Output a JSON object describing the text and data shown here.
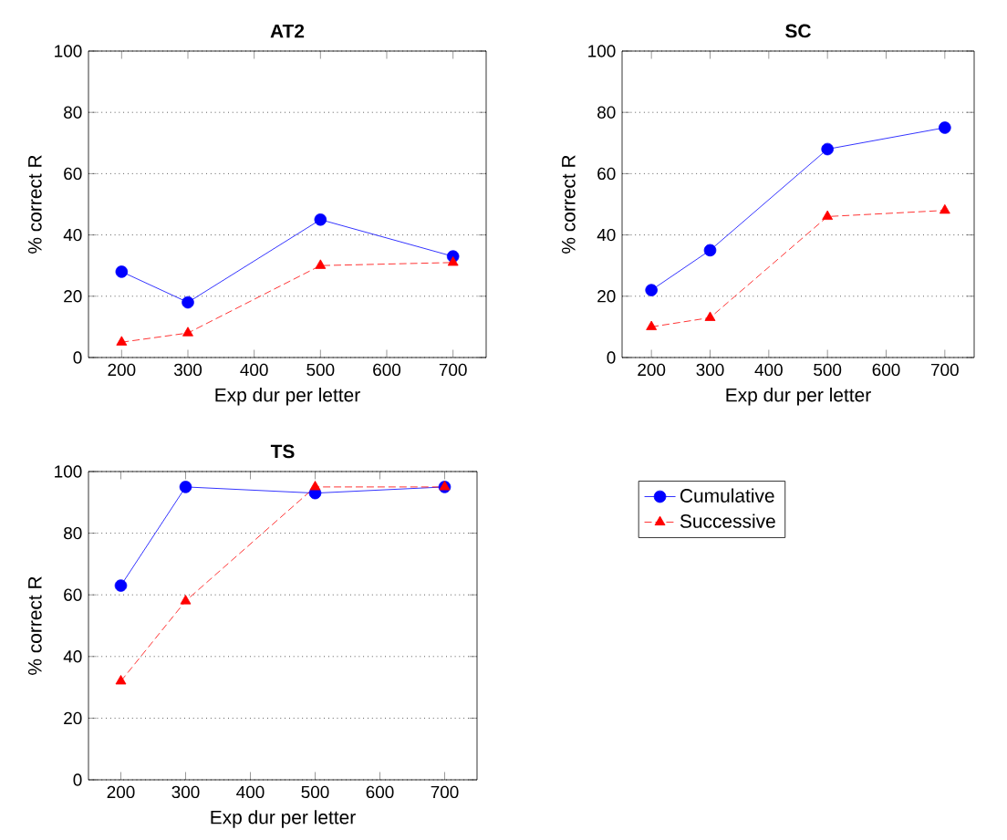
{
  "chart_data": [
    {
      "type": "line",
      "title": "AT2",
      "xlabel": "Exp dur per letter",
      "ylabel": "% correct R",
      "x": [
        200,
        300,
        500,
        700
      ],
      "xlim": [
        150,
        750
      ],
      "ylim": [
        0,
        100
      ],
      "xticks": [
        200,
        300,
        400,
        500,
        600,
        700
      ],
      "yticks": [
        0,
        20,
        40,
        60,
        80,
        100
      ],
      "grid": "y",
      "legend": false,
      "series": [
        {
          "color": "#0000ff",
          "marker": "circle",
          "line_style": "solid",
          "values": [
            28,
            18,
            45,
            33
          ]
        },
        {
          "color": "#ff0000",
          "marker": "triangle",
          "line_style": "dashed",
          "values": [
            5,
            8,
            30,
            31
          ]
        }
      ]
    },
    {
      "type": "line",
      "title": "SC",
      "xlabel": "Exp dur per letter",
      "ylabel": "% correct R",
      "x": [
        200,
        300,
        500,
        700
      ],
      "xlim": [
        150,
        750
      ],
      "ylim": [
        0,
        100
      ],
      "xticks": [
        200,
        300,
        400,
        500,
        600,
        700
      ],
      "yticks": [
        0,
        20,
        40,
        60,
        80,
        100
      ],
      "grid": "y",
      "legend": false,
      "series": [
        {
          "color": "#0000ff",
          "marker": "circle",
          "line_style": "solid",
          "values": [
            22,
            35,
            68,
            75
          ]
        },
        {
          "color": "#ff0000",
          "marker": "triangle",
          "line_style": "dashed",
          "values": [
            10,
            13,
            46,
            48
          ]
        }
      ]
    },
    {
      "type": "line",
      "title": "TS",
      "xlabel": "Exp dur per letter",
      "ylabel": "% correct R",
      "x": [
        200,
        300,
        500,
        700
      ],
      "xlim": [
        150,
        750
      ],
      "ylim": [
        0,
        100
      ],
      "xticks": [
        200,
        300,
        400,
        500,
        600,
        700
      ],
      "yticks": [
        0,
        20,
        40,
        60,
        80,
        100
      ],
      "grid": "y",
      "legend": "right",
      "series": [
        {
          "name": "Cumulative",
          "color": "#0000ff",
          "marker": "circle",
          "line_style": "solid",
          "values": [
            63,
            95,
            93,
            95
          ]
        },
        {
          "name": "Successive",
          "color": "#ff0000",
          "marker": "triangle",
          "line_style": "dashed",
          "values": [
            32,
            58,
            95,
            95
          ]
        }
      ]
    }
  ]
}
